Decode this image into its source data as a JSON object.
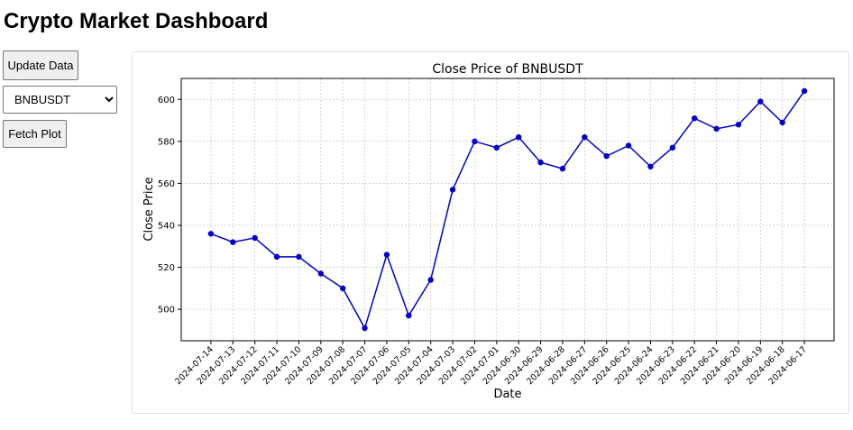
{
  "header": {
    "title": "Crypto Market Dashboard"
  },
  "controls": {
    "update_button": "Update Data",
    "symbol_select": "BNBUSDT",
    "fetch_button": "Fetch Plot"
  },
  "chart_data": {
    "type": "line",
    "title": "Close Price of BNBUSDT",
    "x_label": "Date",
    "y_label": "Close Price",
    "categories": [
      "2024-07-14",
      "2024-07-13",
      "2024-07-12",
      "2024-07-11",
      "2024-07-10",
      "2024-07-09",
      "2024-07-08",
      "2024-07-07",
      "2024-07-06",
      "2024-07-05",
      "2024-07-04",
      "2024-07-03",
      "2024-07-02",
      "2024-07-01",
      "2024-06-30",
      "2024-06-29",
      "2024-06-28",
      "2024-06-27",
      "2024-06-26",
      "2024-06-25",
      "2024-06-24",
      "2024-06-23",
      "2024-06-22",
      "2024-06-21",
      "2024-06-20",
      "2024-06-19",
      "2024-06-18",
      "2024-06-17"
    ],
    "series": [
      {
        "name": "Close Price",
        "color": "#0000cc",
        "values": [
          536,
          532,
          534,
          525,
          525,
          517,
          510,
          491,
          526,
          497,
          514,
          557,
          580,
          577,
          582,
          570,
          567,
          582,
          573,
          578,
          568,
          577,
          591,
          586,
          588,
          599,
          589,
          604
        ]
      }
    ],
    "ylim": [
      485,
      610
    ],
    "yticks": [
      500,
      520,
      540,
      560,
      580,
      600
    ],
    "grid": true
  }
}
